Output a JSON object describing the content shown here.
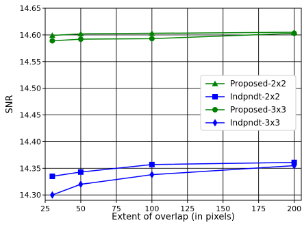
{
  "chart_data": {
    "type": "line",
    "title": "",
    "xlabel": "Extent of overlap (in pixels)",
    "ylabel": "SNR",
    "xlim": [
      25,
      205
    ],
    "ylim": [
      14.29,
      14.65
    ],
    "xticks": [
      25,
      50,
      75,
      100,
      125,
      150,
      175,
      200
    ],
    "yticks": [
      14.3,
      14.35,
      14.4,
      14.45,
      14.5,
      14.55,
      14.6,
      14.65
    ],
    "xtick_labels": [
      "25",
      "50",
      "75",
      "100",
      "125",
      "150",
      "175",
      "200"
    ],
    "ytick_labels": [
      "14.30",
      "14.35",
      "14.40",
      "14.45",
      "14.50",
      "14.55",
      "14.60",
      "14.65"
    ],
    "grid": true,
    "legend_position": "center-right",
    "x": [
      30,
      50,
      100,
      200
    ],
    "series": [
      {
        "name": "Proposed-2x2",
        "color": "#008000",
        "marker": "triangle",
        "values": [
          14.599,
          14.602,
          14.603,
          14.605
        ]
      },
      {
        "name": "Indpndt-2x2",
        "color": "#0000ff",
        "marker": "square",
        "values": [
          14.335,
          14.343,
          14.357,
          14.361
        ]
      },
      {
        "name": "Proposed-3x3",
        "color": "#008000",
        "marker": "circle",
        "values": [
          14.589,
          14.592,
          14.593,
          14.603
        ]
      },
      {
        "name": "Indpndt-3x3",
        "color": "#0000ff",
        "marker": "diamond",
        "values": [
          14.3,
          14.32,
          14.338,
          14.355
        ]
      }
    ]
  }
}
